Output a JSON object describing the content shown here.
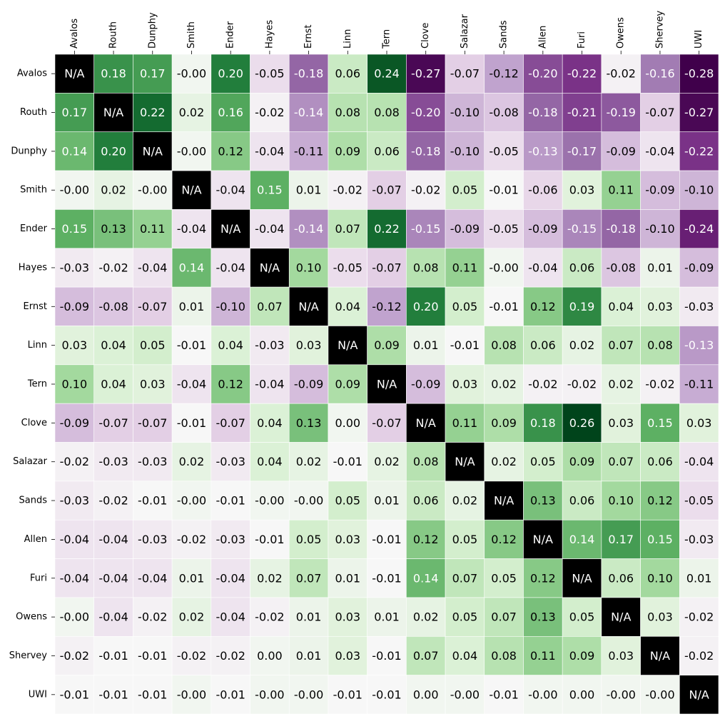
{
  "chart_data": {
    "type": "heatmap",
    "x_categories": [
      "Avalos",
      "Routh",
      "Dunphy",
      "Smith",
      "Ender",
      "Hayes",
      "Ernst",
      "Linn",
      "Tern",
      "Clove",
      "Salazar",
      "Sands",
      "Allen",
      "Furi",
      "Owens",
      "Shervey",
      "UWI"
    ],
    "y_categories": [
      "Avalos",
      "Routh",
      "Dunphy",
      "Smith",
      "Ender",
      "Hayes",
      "Ernst",
      "Linn",
      "Tern",
      "Clove",
      "Salazar",
      "Sands",
      "Allen",
      "Furi",
      "Owens",
      "Shervey",
      "UWI"
    ],
    "values": [
      [
        null,
        0.18,
        0.17,
        0,
        0.2,
        -0.05,
        -0.18,
        0.06,
        0.24,
        -0.27,
        -0.07,
        -0.12,
        -0.2,
        -0.22,
        -0.02,
        -0.16,
        -0.28
      ],
      [
        0.17,
        null,
        0.22,
        0.02,
        0.16,
        -0.02,
        -0.14,
        0.08,
        0.08,
        -0.2,
        -0.1,
        -0.08,
        -0.18,
        -0.21,
        -0.19,
        -0.07,
        -0.27
      ],
      [
        0.14,
        0.2,
        null,
        0,
        0.12,
        -0.04,
        -0.11,
        0.09,
        0.06,
        -0.18,
        -0.1,
        -0.05,
        -0.13,
        -0.17,
        -0.09,
        -0.04,
        -0.22
      ],
      [
        0,
        0.02,
        0,
        null,
        -0.04,
        0.15,
        0.01,
        -0.02,
        -0.07,
        -0.02,
        0.05,
        -0.01,
        -0.06,
        0.03,
        0.11,
        -0.09,
        -0.1
      ],
      [
        0.15,
        0.13,
        0.11,
        -0.04,
        null,
        -0.04,
        -0.14,
        0.07,
        0.22,
        -0.15,
        -0.09,
        -0.05,
        -0.09,
        -0.15,
        -0.18,
        -0.1,
        -0.24
      ],
      [
        -0.03,
        -0.02,
        -0.04,
        0.14,
        -0.04,
        null,
        0.1,
        -0.05,
        -0.07,
        0.08,
        0.11,
        0,
        -0.04,
        0.06,
        -0.08,
        0.01,
        -0.09
      ],
      [
        -0.09,
        -0.08,
        -0.07,
        0.01,
        -0.1,
        0.07,
        null,
        0.04,
        -0.12,
        0.2,
        0.05,
        -0.01,
        0.12,
        0.19,
        0.04,
        0.03,
        -0.03
      ],
      [
        0.03,
        0.04,
        0.05,
        -0.01,
        0.04,
        -0.03,
        0.03,
        null,
        0.09,
        0.01,
        -0.01,
        0.08,
        0.06,
        0.02,
        0.07,
        0.08,
        -0.13
      ],
      [
        0.1,
        0.04,
        0.03,
        -0.04,
        0.12,
        -0.04,
        -0.09,
        0.09,
        null,
        -0.09,
        0.03,
        0.02,
        -0.02,
        -0.02,
        0.02,
        -0.02,
        -0.11
      ],
      [
        -0.09,
        -0.07,
        -0.07,
        -0.01,
        -0.07,
        0.04,
        0.13,
        0,
        -0.07,
        null,
        0.11,
        0.09,
        0.18,
        0.26,
        0.03,
        0.15,
        0.03
      ],
      [
        -0.02,
        -0.03,
        -0.03,
        0.02,
        -0.03,
        0.04,
        0.02,
        -0.01,
        0.02,
        0.08,
        null,
        0.02,
        0.05,
        0.09,
        0.07,
        0.06,
        -0.04
      ],
      [
        -0.03,
        -0.02,
        -0.01,
        0,
        -0.01,
        0,
        0,
        0.05,
        0.01,
        0.06,
        0.02,
        null,
        0.13,
        0.06,
        0.1,
        0.12,
        -0.05
      ],
      [
        -0.04,
        -0.04,
        -0.03,
        -0.02,
        -0.03,
        -0.01,
        0.05,
        0.03,
        -0.01,
        0.12,
        0.05,
        0.12,
        null,
        0.14,
        0.17,
        0.15,
        -0.03
      ],
      [
        -0.04,
        -0.04,
        -0.04,
        0.01,
        -0.04,
        0.02,
        0.07,
        0.01,
        -0.01,
        0.14,
        0.07,
        0.05,
        0.12,
        null,
        0.06,
        0.1,
        0.01
      ],
      [
        0,
        -0.04,
        -0.02,
        0.02,
        -0.04,
        -0.02,
        0.01,
        0.03,
        0.01,
        0.02,
        0.05,
        0.07,
        0.13,
        0.05,
        null,
        0.03,
        -0.02
      ],
      [
        -0.02,
        -0.01,
        -0.01,
        -0.02,
        -0.02,
        0,
        0.01,
        0.03,
        -0.01,
        0.07,
        0.04,
        0.08,
        0.11,
        0.09,
        0.03,
        null,
        -0.02
      ],
      [
        -0.01,
        -0.01,
        -0.01,
        0,
        -0.01,
        0,
        0,
        -0.01,
        -0.01,
        0,
        0,
        -0.01,
        0,
        0,
        0,
        0,
        null
      ]
    ],
    "value_labels": [
      [
        "N/A",
        "0.18",
        "0.17",
        "-0.00",
        "0.20",
        "-0.05",
        "-0.18",
        "0.06",
        "0.24",
        "-0.27",
        "-0.07",
        "-0.12",
        "-0.20",
        "-0.22",
        "-0.02",
        "-0.16",
        "-0.28"
      ],
      [
        "0.17",
        "N/A",
        "0.22",
        "0.02",
        "0.16",
        "-0.02",
        "-0.14",
        "0.08",
        "0.08",
        "-0.20",
        "-0.10",
        "-0.08",
        "-0.18",
        "-0.21",
        "-0.19",
        "-0.07",
        "-0.27"
      ],
      [
        "0.14",
        "0.20",
        "N/A",
        "-0.00",
        "0.12",
        "-0.04",
        "-0.11",
        "0.09",
        "0.06",
        "-0.18",
        "-0.10",
        "-0.05",
        "-0.13",
        "-0.17",
        "-0.09",
        "-0.04",
        "-0.22"
      ],
      [
        "-0.00",
        "0.02",
        "-0.00",
        "N/A",
        "-0.04",
        "0.15",
        "0.01",
        "-0.02",
        "-0.07",
        "-0.02",
        "0.05",
        "-0.01",
        "-0.06",
        "0.03",
        "0.11",
        "-0.09",
        "-0.10"
      ],
      [
        "0.15",
        "0.13",
        "0.11",
        "-0.04",
        "N/A",
        "-0.04",
        "-0.14",
        "0.07",
        "0.22",
        "-0.15",
        "-0.09",
        "-0.05",
        "-0.09",
        "-0.15",
        "-0.18",
        "-0.10",
        "-0.24"
      ],
      [
        "-0.03",
        "-0.02",
        "-0.04",
        "0.14",
        "-0.04",
        "N/A",
        "0.10",
        "-0.05",
        "-0.07",
        "0.08",
        "0.11",
        "-0.00",
        "-0.04",
        "0.06",
        "-0.08",
        "0.01",
        "-0.09"
      ],
      [
        "-0.09",
        "-0.08",
        "-0.07",
        "0.01",
        "-0.10",
        "0.07",
        "N/A",
        "0.04",
        "-0.12",
        "0.20",
        "0.05",
        "-0.01",
        "0.12",
        "0.19",
        "0.04",
        "0.03",
        "-0.03"
      ],
      [
        "0.03",
        "0.04",
        "0.05",
        "-0.01",
        "0.04",
        "-0.03",
        "0.03",
        "N/A",
        "0.09",
        "0.01",
        "-0.01",
        "0.08",
        "0.06",
        "0.02",
        "0.07",
        "0.08",
        "-0.13"
      ],
      [
        "0.10",
        "0.04",
        "0.03",
        "-0.04",
        "0.12",
        "-0.04",
        "-0.09",
        "0.09",
        "N/A",
        "-0.09",
        "0.03",
        "0.02",
        "-0.02",
        "-0.02",
        "0.02",
        "-0.02",
        "-0.11"
      ],
      [
        "-0.09",
        "-0.07",
        "-0.07",
        "-0.01",
        "-0.07",
        "0.04",
        "0.13",
        "0.00",
        "-0.07",
        "N/A",
        "0.11",
        "0.09",
        "0.18",
        "0.26",
        "0.03",
        "0.15",
        "0.03"
      ],
      [
        "-0.02",
        "-0.03",
        "-0.03",
        "0.02",
        "-0.03",
        "0.04",
        "0.02",
        "-0.01",
        "0.02",
        "0.08",
        "N/A",
        "0.02",
        "0.05",
        "0.09",
        "0.07",
        "0.06",
        "-0.04"
      ],
      [
        "-0.03",
        "-0.02",
        "-0.01",
        "-0.00",
        "-0.01",
        "-0.00",
        "-0.00",
        "0.05",
        "0.01",
        "0.06",
        "0.02",
        "N/A",
        "0.13",
        "0.06",
        "0.10",
        "0.12",
        "-0.05"
      ],
      [
        "-0.04",
        "-0.04",
        "-0.03",
        "-0.02",
        "-0.03",
        "-0.01",
        "0.05",
        "0.03",
        "-0.01",
        "0.12",
        "0.05",
        "0.12",
        "N/A",
        "0.14",
        "0.17",
        "0.15",
        "-0.03"
      ],
      [
        "-0.04",
        "-0.04",
        "-0.04",
        "0.01",
        "-0.04",
        "0.02",
        "0.07",
        "0.01",
        "-0.01",
        "0.14",
        "0.07",
        "0.05",
        "0.12",
        "N/A",
        "0.06",
        "0.10",
        "0.01"
      ],
      [
        "-0.00",
        "-0.04",
        "-0.02",
        "0.02",
        "-0.04",
        "-0.02",
        "0.01",
        "0.03",
        "0.01",
        "0.02",
        "0.05",
        "0.07",
        "0.13",
        "0.05",
        "N/A",
        "0.03",
        "-0.02"
      ],
      [
        "-0.02",
        "-0.01",
        "-0.01",
        "-0.02",
        "-0.02",
        "0.00",
        "0.01",
        "0.03",
        "-0.01",
        "0.07",
        "0.04",
        "0.08",
        "0.11",
        "0.09",
        "0.03",
        "N/A",
        "-0.02"
      ],
      [
        "-0.01",
        "-0.01",
        "-0.01",
        "-0.00",
        "-0.01",
        "-0.00",
        "-0.00",
        "-0.01",
        "-0.01",
        "0.00",
        "-0.00",
        "-0.01",
        "-0.00",
        "0.00",
        "-0.00",
        "-0.00",
        "N/A"
      ]
    ],
    "colormap": "PRGn",
    "clim": [
      -0.28,
      0.26
    ],
    "missing_color": "#000000"
  }
}
